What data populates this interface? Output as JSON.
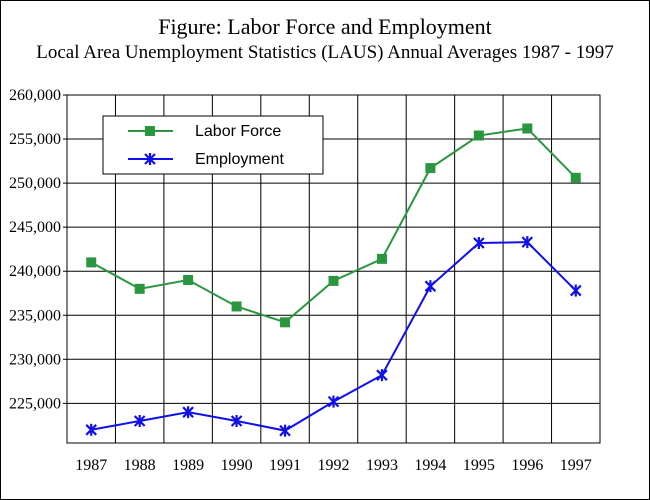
{
  "title": "Figure: Labor Force and Employment",
  "subtitle": "Local Area Unemployment Statistics (LAUS) Annual Averages 1987 - 1997",
  "chart_data": {
    "type": "line",
    "title": "Figure: Labor Force and Employment",
    "subtitle": "Local Area Unemployment Statistics (LAUS) Annual Averages 1987 - 1997",
    "xlabel": "",
    "ylabel": "",
    "x": [
      "1987",
      "1988",
      "1989",
      "1990",
      "1991",
      "1992",
      "1993",
      "1994",
      "1995",
      "1996",
      "1997"
    ],
    "yticks": [
      "225,000",
      "230,000",
      "235,000",
      "240,000",
      "245,000",
      "250,000",
      "255,000",
      "260,000"
    ],
    "ylim": [
      220500,
      260000
    ],
    "grid": true,
    "legend_position": "top-left",
    "series": [
      {
        "name": "Labor Force",
        "color": "#2a9640",
        "marker": "square",
        "values": [
          241000,
          238000,
          239000,
          236000,
          234200,
          238900,
          241400,
          251700,
          255400,
          256200,
          250600
        ]
      },
      {
        "name": "Employment",
        "color": "#1010e8",
        "marker": "star",
        "values": [
          222000,
          223000,
          224000,
          223000,
          221900,
          225200,
          228200,
          238300,
          243200,
          243300,
          237800
        ]
      }
    ]
  }
}
